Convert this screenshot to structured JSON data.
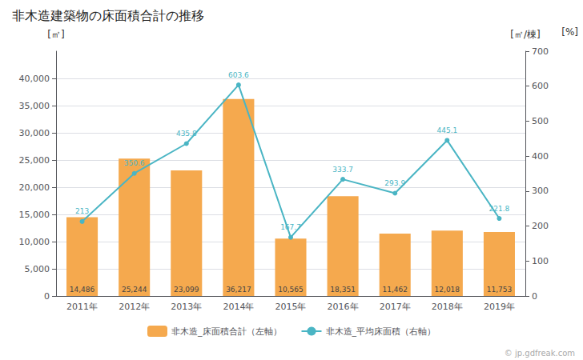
{
  "chart_data": {
    "type": "bar",
    "title": "非木造建築物の床面積合計の推移",
    "categories": [
      "2011年",
      "2012年",
      "2013年",
      "2014年",
      "2015年",
      "2016年",
      "2017年",
      "2018年",
      "2019年"
    ],
    "series": [
      {
        "name": "非木造_床面積合計（左軸）",
        "type": "bar",
        "color": "#f5a94e",
        "values": [
          14486,
          25244,
          23099,
          36217,
          10565,
          18351,
          11462,
          12018,
          11753
        ],
        "value_labels": [
          "14,486",
          "25,244",
          "23,099",
          "36,217",
          "10,565",
          "18,351",
          "11,462",
          "12,018",
          "11,753"
        ],
        "data_labels": true
      },
      {
        "name": "非木造_平均床面積（右軸）",
        "type": "line",
        "color": "#4ab5c4",
        "axis": "y2",
        "marker": "circle",
        "values": [
          213,
          350.6,
          435.8,
          603.6,
          167.7,
          333.7,
          293.9,
          445.1,
          221.8
        ],
        "data_labels": true
      }
    ],
    "ylabel": "[㎡]",
    "y2label": "[㎡/棟]",
    "annotations": [
      "[%]",
      "© jp.gdfreak.com"
    ],
    "ylim": [
      0,
      45000
    ],
    "yticks": [
      0,
      {
        "value": 5000,
        "label": "5,000"
      },
      {
        "value": 10000,
        "label": "10,000"
      },
      {
        "value": 15000,
        "label": "15,000"
      },
      {
        "value": 20000,
        "label": "20,000"
      },
      {
        "value": 25000,
        "label": "25,000"
      },
      {
        "value": 30000,
        "label": "30,000"
      },
      {
        "value": 35000,
        "label": "35,000"
      },
      {
        "value": 40000,
        "label": "40,000"
      }
    ],
    "y2lim": [
      0,
      700
    ],
    "y2ticks": [
      0,
      100,
      200,
      300,
      400,
      500,
      600,
      700
    ],
    "grid": true,
    "legend": "bottom"
  }
}
